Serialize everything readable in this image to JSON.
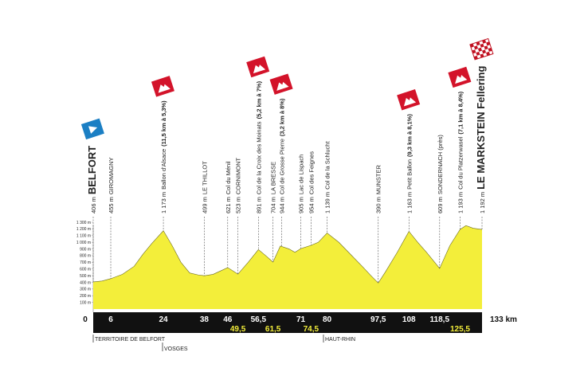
{
  "chart_data": {
    "type": "area",
    "color": "#f3ee3a",
    "x": [
      0,
      3,
      6,
      10,
      14,
      17,
      20,
      24,
      27,
      30,
      33,
      36,
      38,
      41,
      43,
      46,
      49.5,
      53,
      56.5,
      59,
      61.5,
      64,
      67,
      69,
      71,
      74.5,
      77,
      80,
      84,
      88,
      92,
      95,
      97.5,
      100,
      104,
      108,
      111,
      114,
      118.5,
      122,
      125.5,
      127.5,
      130,
      133
    ],
    "values": [
      406,
      420,
      455,
      520,
      640,
      820,
      980,
      1173,
      950,
      700,
      540,
      510,
      499,
      520,
      560,
      621,
      523,
      700,
      891,
      800,
      704,
      944,
      900,
      850,
      905,
      954,
      1000,
      1139,
      1000,
      820,
      640,
      500,
      390,
      560,
      850,
      1163,
      1000,
      850,
      609,
      950,
      1193,
      1250,
      1210,
      1192
    ],
    "ylim": [
      0,
      1300
    ],
    "yticks": [
      {
        "value": 100,
        "label": "100 m"
      },
      {
        "value": 200,
        "label": "200 m"
      },
      {
        "value": 300,
        "label": "300 m"
      },
      {
        "value": 400,
        "label": "400 m"
      },
      {
        "value": 500,
        "label": "500 m"
      },
      {
        "value": 600,
        "label": "600 m"
      },
      {
        "value": 700,
        "label": "700 m"
      },
      {
        "value": 800,
        "label": "800 m"
      },
      {
        "value": 900,
        "label": "900 m"
      },
      {
        "value": 1000,
        "label": "1 000 m"
      },
      {
        "value": 1100,
        "label": "1 100 m"
      },
      {
        "value": 1200,
        "label": "1 200 m"
      },
      {
        "value": 1300,
        "label": "1 300 m"
      }
    ],
    "xlim": [
      0,
      133
    ],
    "xticks": [
      0,
      6,
      24,
      38,
      46,
      {
        "value": 49.5,
        "label": "49,5"
      },
      {
        "value": 56.5,
        "label": "56,5"
      },
      {
        "value": 61.5,
        "label": "61,5"
      },
      71,
      {
        "value": 74.5,
        "label": "74,5"
      },
      80,
      {
        "value": 97.5,
        "label": "97,5"
      },
      108,
      {
        "value": 118.5,
        "label": "118,5"
      },
      {
        "value": 125.5,
        "label": "125,5"
      },
      {
        "value": 133,
        "label": "133 km"
      }
    ],
    "waypoints": [
      {
        "km": 0,
        "altitude": "406 m",
        "name": "BELFORT"
      },
      {
        "km": 6,
        "altitude": "455 m",
        "name": "GIROMAGNY"
      },
      {
        "km": 24,
        "altitude": "1 173 m",
        "name": "Ballon d'Alsace",
        "detail": "(11,5 km à 5,3%)"
      },
      {
        "km": 38,
        "altitude": "499 m",
        "name": "LE THILLOT"
      },
      {
        "km": 46,
        "altitude": "621 m",
        "name": "Col du Ménil"
      },
      {
        "km": 49.5,
        "altitude": "523 m",
        "name": "CORNIMONT"
      },
      {
        "km": 56.5,
        "altitude": "891 m",
        "name": "Col de la Croix des Moinats",
        "detail": "(5,2 km à 7%)"
      },
      {
        "km": 61.5,
        "altitude": "704 m",
        "name": "LA BRESSE"
      },
      {
        "km": 64.5,
        "altitude": "944 m",
        "name": "Col de Grosse Pierre",
        "detail": "(3,2 km à 8%)"
      },
      {
        "km": 71,
        "altitude": "905 m",
        "name": "Lac de Lispach"
      },
      {
        "km": 74.5,
        "altitude": "954 m",
        "name": "Col des Feignes"
      },
      {
        "km": 80,
        "altitude": "1 139 m",
        "name": "Col de la Schlucht"
      },
      {
        "km": 97.5,
        "altitude": "390 m",
        "name": "MUNSTER"
      },
      {
        "km": 108,
        "altitude": "1 163 m",
        "name": "Petit Ballon",
        "detail": "(9,3 km à 8,1%)"
      },
      {
        "km": 118.5,
        "altitude": "609 m",
        "name": "SONDERNACH (près)"
      },
      {
        "km": 125.5,
        "altitude": "1 193 m",
        "name": "Col du Platzerwasel",
        "detail": "(7,1 km à 8,4%)"
      },
      {
        "km": 133,
        "altitude": "1 192 m",
        "name": "LE MARKSTEIN Fellering"
      }
    ],
    "regions": [
      "TERRITOIRE DE BELFORT",
      "VOSGES",
      "HAUT-RHIN"
    ]
  }
}
